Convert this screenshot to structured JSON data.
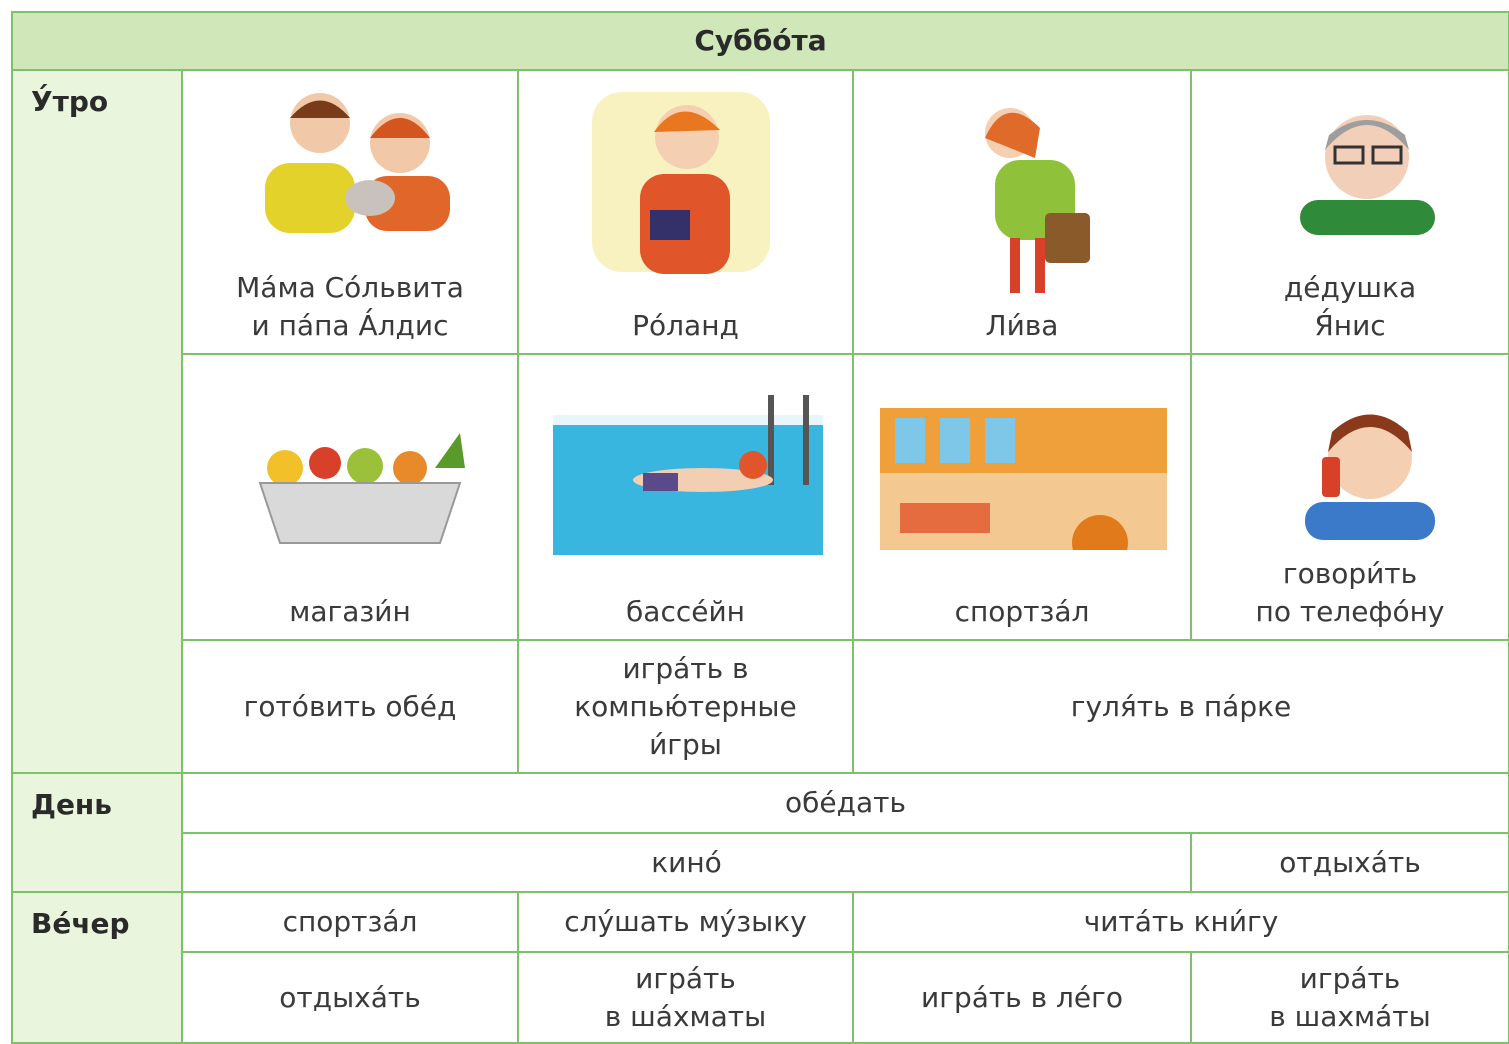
{
  "title": "Суббо́та",
  "sections": [
    {
      "label": "У́тро",
      "rows": [
        [
          "Ма́ма Со́львита\nи па́па А́лдис",
          "Ро́ланд",
          "Ли́ва",
          "де́душка\nЯ́нис"
        ],
        [
          "магази́н",
          "бассе́йн",
          "спортза́л",
          "говори́ть\nпо телефо́ну"
        ],
        [
          "гото́вить обе́д",
          "игра́ть в\nкомпью́терные\nи́гры",
          "гуля́ть в па́рке"
        ]
      ]
    },
    {
      "label": "День",
      "rows": [
        [
          "обе́дать"
        ],
        [
          "кино́",
          "отдыха́ть"
        ]
      ]
    },
    {
      "label": "Ве́чер",
      "rows": [
        [
          "спортза́л",
          "слу́шать му́зыку",
          "чита́ть кни́гу"
        ],
        [
          "отдыха́ть",
          "игра́ть\nв ша́хматы",
          "игра́ть в ле́го",
          "игра́ть\nв шахма́ты"
        ]
      ]
    }
  ]
}
